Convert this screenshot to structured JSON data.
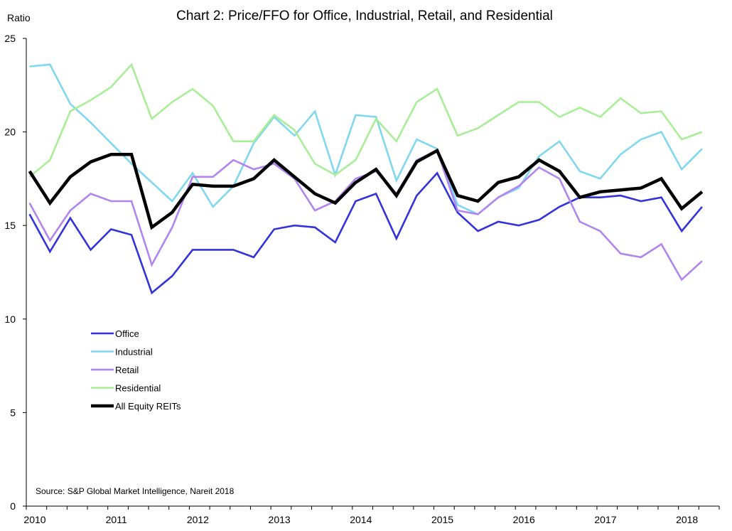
{
  "chart_data": {
    "type": "line",
    "title": "Chart 2: Price/FFO for Office, Industrial, Retail, and Residential",
    "ylabel": "Ratio",
    "xlabel": "",
    "source": "Source: S&P Global Market Intelligence, Nareit 2018",
    "ylim": [
      0,
      25
    ],
    "xlim": [
      2010,
      2018.5
    ],
    "yticks": [
      "0",
      "5",
      "10",
      "15",
      "20",
      "25"
    ],
    "xticks": [
      "2010",
      "2011",
      "2012",
      "2013",
      "2014",
      "2015",
      "2016",
      "2017",
      "2018"
    ],
    "x": [
      "2010 Q1",
      "2010 Q2",
      "2010 Q3",
      "2010 Q4",
      "2011 Q1",
      "2011 Q2",
      "2011 Q3",
      "2011 Q4",
      "2012 Q1",
      "2012 Q2",
      "2012 Q3",
      "2012 Q4",
      "2013 Q1",
      "2013 Q2",
      "2013 Q3",
      "2013 Q4",
      "2014 Q1",
      "2014 Q2",
      "2014 Q3",
      "2014 Q4",
      "2015 Q1",
      "2015 Q2",
      "2015 Q3",
      "2015 Q4",
      "2016 Q1",
      "2016 Q2",
      "2016 Q3",
      "2016 Q4",
      "2017 Q1",
      "2017 Q2",
      "2017 Q3",
      "2017 Q4",
      "2018 Q1",
      "2018 Q2"
    ],
    "grid": false,
    "legend_position": "left",
    "series": [
      {
        "name": "Office",
        "color": "#3333dd",
        "width": "normal",
        "values": [
          15.6,
          13.6,
          15.4,
          13.7,
          14.8,
          14.5,
          11.4,
          12.3,
          13.7,
          13.7,
          13.7,
          13.3,
          14.8,
          15.0,
          14.9,
          14.1,
          16.3,
          16.7,
          14.3,
          16.6,
          17.8,
          15.7,
          14.7,
          15.2,
          15.0,
          15.3,
          16.0,
          16.5,
          16.5,
          16.6,
          16.3,
          16.5,
          14.7,
          16.0
        ]
      },
      {
        "name": "Industrial",
        "color": "#7fd7f0",
        "width": "normal",
        "values": [
          23.5,
          23.6,
          21.5,
          20.5,
          19.4,
          18.3,
          17.3,
          16.3,
          17.8,
          16.0,
          17.1,
          19.4,
          20.8,
          19.8,
          21.1,
          17.7,
          20.9,
          20.8,
          17.4,
          19.6,
          19.1,
          16.1,
          15.6,
          16.5,
          17.0,
          18.7,
          19.5,
          17.9,
          17.5,
          18.8,
          19.6,
          20.0,
          18.0,
          19.1
        ]
      },
      {
        "name": "Retail",
        "color": "#b284f0",
        "width": "normal",
        "values": [
          16.2,
          14.2,
          15.8,
          16.7,
          16.3,
          16.3,
          12.9,
          14.9,
          17.6,
          17.6,
          18.5,
          18.0,
          18.3,
          17.5,
          15.8,
          16.3,
          17.5,
          17.9,
          16.7,
          18.5,
          19.0,
          15.8,
          15.6,
          16.5,
          17.1,
          18.1,
          17.5,
          15.2,
          14.7,
          13.5,
          13.3,
          14.0,
          12.1,
          13.1
        ]
      },
      {
        "name": "Residential",
        "color": "#a8ee96",
        "width": "normal",
        "values": [
          17.6,
          18.5,
          21.1,
          21.7,
          22.4,
          23.6,
          20.7,
          21.6,
          22.3,
          21.4,
          19.5,
          19.5,
          20.9,
          20.1,
          18.3,
          17.7,
          18.5,
          20.7,
          19.5,
          21.6,
          22.3,
          19.8,
          20.2,
          20.9,
          21.6,
          21.6,
          20.8,
          21.3,
          20.8,
          21.8,
          21.0,
          21.1,
          19.6,
          20.0
        ]
      },
      {
        "name": "All Equity REITs",
        "color": "#000000",
        "width": "bold",
        "values": [
          17.9,
          16.2,
          17.6,
          18.4,
          18.8,
          18.8,
          14.9,
          15.7,
          17.2,
          17.1,
          17.1,
          17.5,
          18.5,
          17.6,
          16.7,
          16.2,
          17.3,
          18.0,
          16.6,
          18.4,
          19.0,
          16.6,
          16.3,
          17.3,
          17.6,
          18.5,
          17.9,
          16.5,
          16.8,
          16.9,
          17.0,
          17.5,
          15.9,
          16.8
        ]
      }
    ]
  }
}
